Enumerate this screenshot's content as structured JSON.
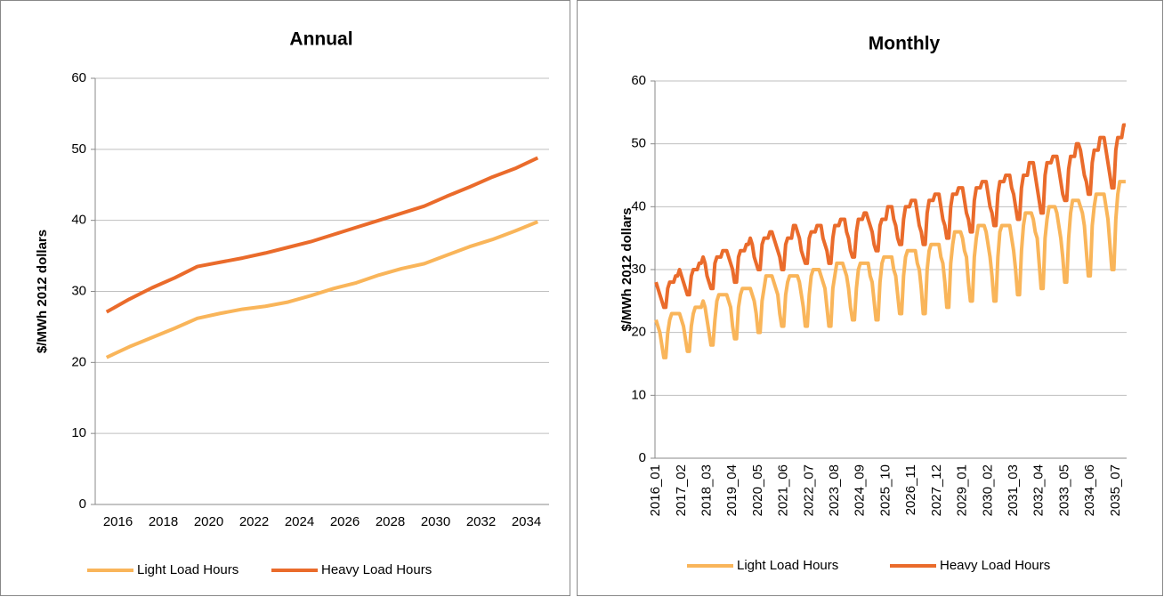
{
  "chart_data": [
    {
      "type": "line",
      "title": "Annual",
      "y_label": "$/MWh 2012 dollars",
      "categories": [
        "2016",
        null,
        "2018",
        null,
        "2020",
        null,
        "2022",
        null,
        "2024",
        null,
        "2026",
        null,
        "2028",
        null,
        "2030",
        null,
        "2032",
        null,
        "2034",
        null
      ],
      "series": [
        {
          "name": "Light Load Hours",
          "color": "#f9b55a",
          "values": [
            20.7,
            22.2,
            23.5,
            24.8,
            26.2,
            26.9,
            27.5,
            27.9,
            28.5,
            29.4,
            30.4,
            31.2,
            32.3,
            33.2,
            33.9,
            35.1,
            36.3,
            37.3,
            38.5,
            39.8
          ]
        },
        {
          "name": "Heavy Load Hours",
          "color": "#ea6b2b",
          "values": [
            27.1,
            28.9,
            30.5,
            31.9,
            33.5,
            34.1,
            34.7,
            35.4,
            36.2,
            37.0,
            38.0,
            39.0,
            40.0,
            41.0,
            42.0,
            43.4,
            44.7,
            46.1,
            47.3,
            48.8
          ]
        }
      ],
      "ylim": [
        0,
        60
      ],
      "yticks": [
        0,
        10,
        20,
        30,
        40,
        50,
        60
      ],
      "grid": true,
      "legend": "bottom",
      "x_label_rotation": 0
    },
    {
      "type": "line",
      "title": "Monthly",
      "y_label": "$/MWh 2012 dollars",
      "categories": [
        "2016_01",
        null,
        null,
        null,
        null,
        null,
        null,
        null,
        null,
        null,
        null,
        null,
        null,
        "2017_02",
        null,
        null,
        null,
        null,
        null,
        null,
        null,
        null,
        null,
        null,
        null,
        null,
        "2018_03",
        null,
        null,
        null,
        null,
        null,
        null,
        null,
        null,
        null,
        null,
        null,
        null,
        "2019_04",
        null,
        null,
        null,
        null,
        null,
        null,
        null,
        null,
        null,
        null,
        null,
        null,
        "2020_05",
        null,
        null,
        null,
        null,
        null,
        null,
        null,
        null,
        null,
        null,
        null,
        null,
        "2021_06",
        null,
        null,
        null,
        null,
        null,
        null,
        null,
        null,
        null,
        null,
        null,
        null,
        "2022_07",
        null,
        null,
        null,
        null,
        null,
        null,
        null,
        null,
        null,
        null,
        null,
        null,
        "2023_08",
        null,
        null,
        null,
        null,
        null,
        null,
        null,
        null,
        null,
        null,
        null,
        null,
        "2024_09",
        null,
        null,
        null,
        null,
        null,
        null,
        null,
        null,
        null,
        null,
        null,
        null,
        "2025_10",
        null,
        null,
        null,
        null,
        null,
        null,
        null,
        null,
        null,
        null,
        null,
        null,
        "2026_11",
        null,
        null,
        null,
        null,
        null,
        null,
        null,
        null,
        null,
        null,
        null,
        null,
        "2027_12",
        null,
        null,
        null,
        null,
        null,
        null,
        null,
        null,
        null,
        null,
        null,
        null,
        "2029_01",
        null,
        null,
        null,
        null,
        null,
        null,
        null,
        null,
        null,
        null,
        null,
        null,
        "2030_02",
        null,
        null,
        null,
        null,
        null,
        null,
        null,
        null,
        null,
        null,
        null,
        null,
        "2031_03",
        null,
        null,
        null,
        null,
        null,
        null,
        null,
        null,
        null,
        null,
        null,
        null,
        "2032_04",
        null,
        null,
        null,
        null,
        null,
        null,
        null,
        null,
        null,
        null,
        null,
        null,
        "2033_05",
        null,
        null,
        null,
        null,
        null,
        null,
        null,
        null,
        null,
        null,
        null,
        null,
        "2034_06",
        null,
        null,
        null,
        null,
        null,
        null,
        null,
        null,
        null,
        null,
        null,
        null,
        "2035_07",
        null,
        null,
        null,
        null,
        null
      ],
      "series": [
        {
          "name": "Light Load Hours",
          "color": "#f9b55a",
          "values": [
            22,
            21,
            20,
            18,
            16,
            16,
            20,
            22,
            23,
            23,
            23,
            23,
            23,
            22,
            21,
            19,
            17,
            17,
            21,
            23,
            24,
            24,
            24,
            24,
            25,
            24,
            22,
            20,
            18,
            18,
            22,
            25,
            26,
            26,
            26,
            26,
            26,
            25,
            24,
            21,
            19,
            19,
            24,
            26,
            27,
            27,
            27,
            27,
            27,
            26,
            25,
            23,
            20,
            20,
            25,
            27,
            29,
            29,
            29,
            29,
            28,
            27,
            26,
            23,
            21,
            21,
            26,
            28,
            29,
            29,
            29,
            29,
            29,
            28,
            26,
            24,
            21,
            21,
            26,
            29,
            30,
            30,
            30,
            30,
            29,
            28,
            27,
            24,
            21,
            21,
            27,
            29,
            31,
            31,
            31,
            31,
            30,
            29,
            27,
            24,
            22,
            22,
            27,
            30,
            31,
            31,
            31,
            31,
            31,
            29,
            28,
            25,
            22,
            22,
            28,
            31,
            32,
            32,
            32,
            32,
            32,
            30,
            29,
            26,
            23,
            23,
            29,
            32,
            33,
            33,
            33,
            33,
            33,
            31,
            30,
            27,
            23,
            23,
            30,
            33,
            34,
            34,
            34,
            34,
            34,
            32,
            31,
            28,
            24,
            24,
            31,
            34,
            36,
            36,
            36,
            36,
            35,
            33,
            32,
            28,
            25,
            25,
            32,
            35,
            37,
            37,
            37,
            37,
            36,
            34,
            32,
            29,
            25,
            25,
            32,
            36,
            37,
            37,
            37,
            37,
            37,
            35,
            33,
            30,
            26,
            26,
            33,
            37,
            39,
            39,
            39,
            39,
            38,
            36,
            35,
            31,
            27,
            27,
            35,
            38,
            40,
            40,
            40,
            40,
            39,
            37,
            35,
            32,
            28,
            28,
            35,
            39,
            41,
            41,
            41,
            41,
            40,
            39,
            37,
            33,
            29,
            29,
            37,
            40,
            42,
            42,
            42,
            42,
            42,
            40,
            38,
            34,
            30,
            30,
            38,
            42,
            44,
            44,
            44,
            44
          ]
        },
        {
          "name": "Heavy Load Hours",
          "color": "#ea6b2b",
          "values": [
            28,
            27,
            26,
            25,
            24,
            24,
            27,
            28,
            28,
            28,
            29,
            29,
            30,
            29,
            28,
            27,
            26,
            26,
            29,
            30,
            30,
            30,
            31,
            31,
            32,
            31,
            29,
            28,
            27,
            27,
            31,
            32,
            32,
            32,
            33,
            33,
            33,
            32,
            31,
            30,
            28,
            28,
            32,
            33,
            33,
            33,
            34,
            34,
            35,
            34,
            32,
            31,
            30,
            30,
            34,
            35,
            35,
            35,
            36,
            36,
            35,
            34,
            33,
            32,
            30,
            30,
            34,
            35,
            35,
            35,
            37,
            37,
            36,
            35,
            33,
            32,
            31,
            31,
            35,
            36,
            36,
            36,
            37,
            37,
            37,
            35,
            34,
            33,
            31,
            31,
            35,
            37,
            37,
            37,
            38,
            38,
            38,
            36,
            35,
            33,
            32,
            32,
            36,
            38,
            38,
            38,
            39,
            39,
            38,
            37,
            36,
            34,
            33,
            33,
            37,
            38,
            38,
            38,
            40,
            40,
            40,
            38,
            37,
            35,
            34,
            34,
            38,
            40,
            40,
            40,
            41,
            41,
            41,
            39,
            37,
            36,
            34,
            34,
            39,
            41,
            41,
            41,
            42,
            42,
            42,
            40,
            38,
            37,
            35,
            35,
            40,
            42,
            42,
            42,
            43,
            43,
            43,
            41,
            39,
            38,
            36,
            36,
            41,
            43,
            43,
            43,
            44,
            44,
            44,
            42,
            40,
            39,
            37,
            37,
            42,
            44,
            44,
            44,
            45,
            45,
            45,
            43,
            42,
            40,
            38,
            38,
            43,
            45,
            45,
            45,
            47,
            47,
            47,
            45,
            43,
            41,
            39,
            39,
            45,
            47,
            47,
            47,
            48,
            48,
            48,
            46,
            44,
            42,
            41,
            41,
            46,
            48,
            48,
            48,
            50,
            50,
            49,
            47,
            45,
            44,
            42,
            42,
            47,
            49,
            49,
            49,
            51,
            51,
            51,
            49,
            47,
            45,
            43,
            43,
            49,
            51,
            51,
            51,
            53,
            53
          ]
        }
      ],
      "ylim": [
        0,
        60
      ],
      "yticks": [
        0,
        10,
        20,
        30,
        40,
        50,
        60
      ],
      "grid": true,
      "legend": "bottom",
      "x_label_rotation": -90
    }
  ]
}
